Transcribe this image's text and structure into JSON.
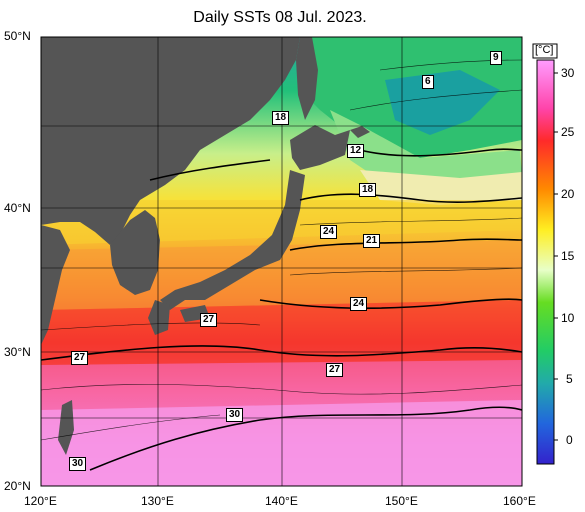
{
  "title": "Daily SSTs 08 Jul. 2023.",
  "unit": "[°C]",
  "lat_labels": [
    "50°N",
    "40°N",
    "30°N",
    "20°N"
  ],
  "lon_labels": [
    "120°E",
    "130°E",
    "140°E",
    "150°E",
    "160°E"
  ],
  "colorbar_ticks": [
    "30",
    "25",
    "20",
    "15",
    "10",
    "5",
    "0"
  ],
  "contour_labels": [
    "9",
    "6",
    "18",
    "12",
    "18",
    "24",
    "21",
    "24",
    "27",
    "27",
    "27",
    "30",
    "30"
  ],
  "colors": {
    "land": "#555555",
    "warm": "#ff2a2a",
    "hot": "#ff80ff"
  }
}
